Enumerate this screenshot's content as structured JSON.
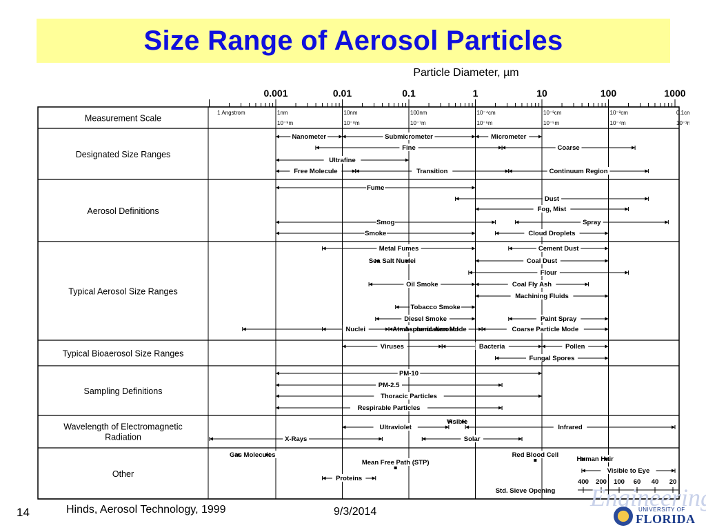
{
  "slide": {
    "title": "Size Range of Aerosol Particles",
    "slide_number": "14",
    "source": "Hinds, Aerosol Technology, 1999",
    "date": "9/3/2014",
    "logo_text": {
      "watermark": "Engineering",
      "university": "UNIVERSITY OF",
      "name": "FLORIDA"
    }
  },
  "diagram": {
    "axis_title": "Particle Diameter, µm",
    "decades": [
      "0.001",
      "0.01",
      "0.1",
      "1",
      "10",
      "100",
      "1000"
    ],
    "measurement_scale_labels": [
      {
        "top": "1 Angstrom",
        "bottom": "",
        "decade": -3.9
      },
      {
        "top": "1nm",
        "bottom": "10⁻⁹m",
        "decade": -3
      },
      {
        "top": "10nm",
        "bottom": "10⁻⁸m",
        "decade": -2
      },
      {
        "top": "100nm",
        "bottom": "10⁻⁷m",
        "decade": -1
      },
      {
        "top": "10⁻⁴cm",
        "bottom": "10⁻⁶m",
        "decade": 0
      },
      {
        "top": "10⁻³cm",
        "bottom": "10⁻⁵m",
        "decade": 1
      },
      {
        "top": "10⁻²cm",
        "bottom": "10⁻⁴m",
        "decade": 2
      },
      {
        "top": "0.1cm",
        "bottom": "10⁻³m",
        "decade": 3
      }
    ],
    "sections": [
      {
        "name": "Measurement Scale"
      },
      {
        "name": "Designated Size Ranges"
      },
      {
        "name": "Aerosol Definitions"
      },
      {
        "name": "Typical Aerosol Size Ranges"
      },
      {
        "name": "Typical Bioaerosol Size Ranges"
      },
      {
        "name": "Sampling Definitions"
      },
      {
        "name": "Wavelength of Electromagnetic Radiation"
      },
      {
        "name": "Other"
      }
    ],
    "ranges": [
      {
        "section": "Designated Size Ranges",
        "label": "Nanometer",
        "from": -3,
        "to": -2
      },
      {
        "section": "Designated Size Ranges",
        "label": "Submicrometer",
        "from": -2,
        "to": 0
      },
      {
        "section": "Designated Size Ranges",
        "label": "Micrometer",
        "from": 0,
        "to": 1
      },
      {
        "section": "Designated Size Ranges",
        "label": "Fine",
        "from": -2.4,
        "to": 0.4
      },
      {
        "section": "Designated Size Ranges",
        "label": "Coarse",
        "from": 0.4,
        "to": 2.4
      },
      {
        "section": "Designated Size Ranges",
        "label": "Ultrafine",
        "from": -3,
        "to": -1
      },
      {
        "section": "Designated Size Ranges",
        "label": "Free Molecule",
        "from": -3,
        "to": -1.8
      },
      {
        "section": "Designated Size Ranges",
        "label": "Transition",
        "from": -1.8,
        "to": 0.5
      },
      {
        "section": "Designated Size Ranges",
        "label": "Continuum Region",
        "from": 0.5,
        "to": 2.6
      },
      {
        "section": "Aerosol Definitions",
        "label": "Fume",
        "from": -3,
        "to": 0
      },
      {
        "section": "Aerosol Definitions",
        "label": "Dust",
        "from": -0.3,
        "to": 2.6
      },
      {
        "section": "Aerosol Definitions",
        "label": "Fog, Mist",
        "from": 0,
        "to": 2.3
      },
      {
        "section": "Aerosol Definitions",
        "label": "Smog",
        "from": -3,
        "to": 0.3
      },
      {
        "section": "Aerosol Definitions",
        "label": "Spray",
        "from": 0.6,
        "to": 2.9
      },
      {
        "section": "Aerosol Definitions",
        "label": "Smoke",
        "from": -3,
        "to": 0
      },
      {
        "section": "Aerosol Definitions",
        "label": "Cloud Droplets",
        "from": 0.3,
        "to": 2
      },
      {
        "section": "Typical Aerosol Size Ranges",
        "label": "Metal Fumes",
        "from": -2.3,
        "to": 0
      },
      {
        "section": "Typical Aerosol Size Ranges",
        "label": "Cement Dust",
        "from": 0.5,
        "to": 2
      },
      {
        "section": "Typical Aerosol Size Ranges",
        "label": "Sea Salt Nuclei",
        "from": -1.5,
        "to": -1
      },
      {
        "section": "Typical Aerosol Size Ranges",
        "label": "Coal Dust",
        "from": 0,
        "to": 2
      },
      {
        "section": "Typical Aerosol Size Ranges",
        "label": "Flour",
        "from": -0.1,
        "to": 2.3
      },
      {
        "section": "Typical Aerosol Size Ranges",
        "label": "Oil Smoke",
        "from": -1.6,
        "to": 0
      },
      {
        "section": "Typical Aerosol Size Ranges",
        "label": "Coal Fly Ash",
        "from": 0,
        "to": 1.7
      },
      {
        "section": "Typical Aerosol Size Ranges",
        "label": "Machining Fluids",
        "from": 0,
        "to": 2
      },
      {
        "section": "Typical Aerosol Size Ranges",
        "label": "Tobacco Smoke",
        "from": -1.2,
        "to": 0
      },
      {
        "section": "Typical Aerosol Size Ranges",
        "label": "Diesel Smoke",
        "from": -1.5,
        "to": 0
      },
      {
        "section": "Typical Aerosol Size Ranges",
        "label": "Paint Spray",
        "from": 0.5,
        "to": 2
      },
      {
        "section": "Typical Aerosol Size Ranges",
        "label": "Atmospheric Aerosol",
        "from": -3.5,
        "to": 2
      },
      {
        "section": "Typical Aerosol Size Ranges",
        "label": "Nuclei",
        "from": -2.3,
        "to": -1.3
      },
      {
        "section": "Typical Aerosol Size Ranges",
        "label": "Accumulation Mode",
        "from": -1.3,
        "to": 0.1
      },
      {
        "section": "Typical Aerosol Size Ranges",
        "label": "Coarse Particle Mode",
        "from": 0.1,
        "to": 2
      },
      {
        "section": "Typical Bioaerosol Size Ranges",
        "label": "Viruses",
        "from": -2,
        "to": -0.5
      },
      {
        "section": "Typical Bioaerosol Size Ranges",
        "label": "Bacteria",
        "from": -0.5,
        "to": 1
      },
      {
        "section": "Typical Bioaerosol Size Ranges",
        "label": "Pollen",
        "from": 1,
        "to": 2
      },
      {
        "section": "Typical Bioaerosol Size Ranges",
        "label": "Fungal Spores",
        "from": 0.3,
        "to": 2
      },
      {
        "section": "Sampling Definitions",
        "label": "PM-10",
        "from": -3,
        "to": 1
      },
      {
        "section": "Sampling Definitions",
        "label": "PM-2.5",
        "from": -3,
        "to": 0.4
      },
      {
        "section": "Sampling Definitions",
        "label": "Thoracic Particles",
        "from": -3,
        "to": 1
      },
      {
        "section": "Sampling Definitions",
        "label": "Respirable Particles",
        "from": -3,
        "to": 0.4
      },
      {
        "section": "Wavelength of Electromagnetic Radiation",
        "label": "Visible",
        "from": -0.4,
        "to": -0.15
      },
      {
        "section": "Wavelength of Electromagnetic Radiation",
        "label": "Ultraviolet",
        "from": -2,
        "to": -0.4
      },
      {
        "section": "Wavelength of Electromagnetic Radiation",
        "label": "Infrared",
        "from": -0.15,
        "to": 3
      },
      {
        "section": "Wavelength of Electromagnetic Radiation",
        "label": "X-Rays",
        "from": -4,
        "to": -1.4
      },
      {
        "section": "Wavelength of Electromagnetic Radiation",
        "label": "Solar",
        "from": -0.8,
        "to": 0.7
      },
      {
        "section": "Other",
        "label": "Gas Molecules",
        "from": -3.6,
        "to": -3.1
      },
      {
        "section": "Other",
        "label": "Mean Free Path (STP)",
        "from": -1.2,
        "to": -1.2
      },
      {
        "section": "Other",
        "label": "Red Blood Cell",
        "from": 0.9,
        "to": 0.9
      },
      {
        "section": "Other",
        "label": "Human Hair",
        "from": 1.6,
        "to": 2
      },
      {
        "section": "Other",
        "label": "Visible to Eye",
        "from": 1.6,
        "to": 3
      },
      {
        "section": "Other",
        "label": "Proteins",
        "from": -2.3,
        "to": -1.5
      }
    ],
    "sieve": {
      "label": "Std. Sieve Opening",
      "values": [
        "400",
        "200",
        "100",
        "60",
        "40",
        "20"
      ]
    }
  }
}
